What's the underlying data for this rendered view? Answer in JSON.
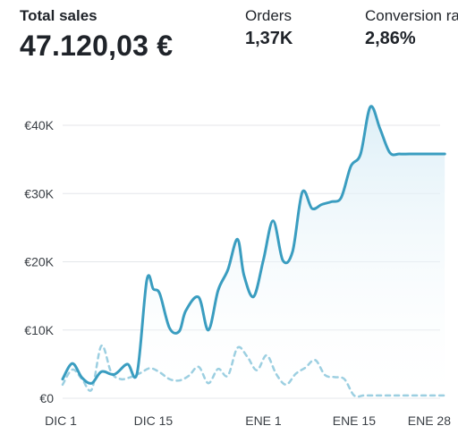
{
  "metrics": {
    "total_sales": {
      "label": "Total sales",
      "value": "47.120,03 €"
    },
    "orders": {
      "label": "Orders",
      "value": "1,37K"
    },
    "conversion": {
      "label": "Conversion ra",
      "value": "2,86%"
    }
  },
  "colors": {
    "primary_line": "#3a9dc0",
    "comparison_line": "#9ccfe1",
    "area_fill_top": "#d9edf6",
    "gridline": "#e4e6ea"
  },
  "chart_data": {
    "type": "line",
    "y_tick_labels": [
      "€0",
      "€10K",
      "€20K",
      "€30K",
      "€40K"
    ],
    "y_ticks": [
      0,
      10000,
      20000,
      30000,
      40000
    ],
    "ylim": [
      0,
      44000
    ],
    "x_tick_labels": [
      "DIC 1",
      "DIC 15",
      "ENE 1",
      "ENE 15",
      "ENE 28"
    ],
    "x_tick_days": [
      0,
      14,
      31,
      45,
      58
    ],
    "xlim": [
      0,
      59
    ],
    "grid": true,
    "series": [
      {
        "style": "solid-area",
        "x": [
          0,
          1.5,
          3,
          4.5,
          6,
          8,
          10,
          11.5,
          13,
          14,
          15,
          16.5,
          18,
          19,
          21,
          22.5,
          24,
          25.5,
          27,
          28,
          29.5,
          31,
          32.5,
          34,
          35.5,
          37,
          38.5,
          40,
          41.5,
          43,
          44.5,
          46,
          47.5,
          49,
          50.5,
          52,
          53.5,
          55,
          56.5,
          57.5,
          59
        ],
        "values": [
          2800,
          5100,
          3000,
          2200,
          3900,
          3500,
          5000,
          3700,
          17300,
          16000,
          15300,
          10300,
          9800,
          12800,
          14800,
          10000,
          15800,
          18800,
          23300,
          18000,
          14900,
          20300,
          26000,
          20200,
          21500,
          30200,
          27800,
          28400,
          28800,
          29400,
          34000,
          35800,
          42700,
          39500,
          36000,
          35800,
          35800,
          35800,
          35800,
          35800,
          35800
        ]
      },
      {
        "style": "dashed",
        "x": [
          0,
          1.5,
          3,
          4.5,
          6,
          7.5,
          9,
          10.5,
          12,
          13.5,
          15,
          16.5,
          18,
          19.5,
          21,
          22.5,
          24,
          25.5,
          27,
          28.5,
          30,
          31.5,
          33,
          34.5,
          36,
          37.5,
          39,
          40.5,
          42,
          43.5,
          45,
          46.5,
          48,
          49.5,
          51,
          52.5,
          54,
          55.5,
          57,
          58.5,
          59
        ],
        "values": [
          2000,
          4200,
          2800,
          1300,
          7700,
          3800,
          2800,
          3100,
          3700,
          4400,
          3800,
          2800,
          2600,
          3300,
          4600,
          2200,
          4300,
          3300,
          7400,
          6100,
          4100,
          6300,
          3500,
          2000,
          3600,
          4500,
          5600,
          3400,
          3100,
          2800,
          400,
          400,
          400,
          400,
          400,
          400,
          400,
          400,
          400,
          400,
          400
        ]
      }
    ]
  }
}
